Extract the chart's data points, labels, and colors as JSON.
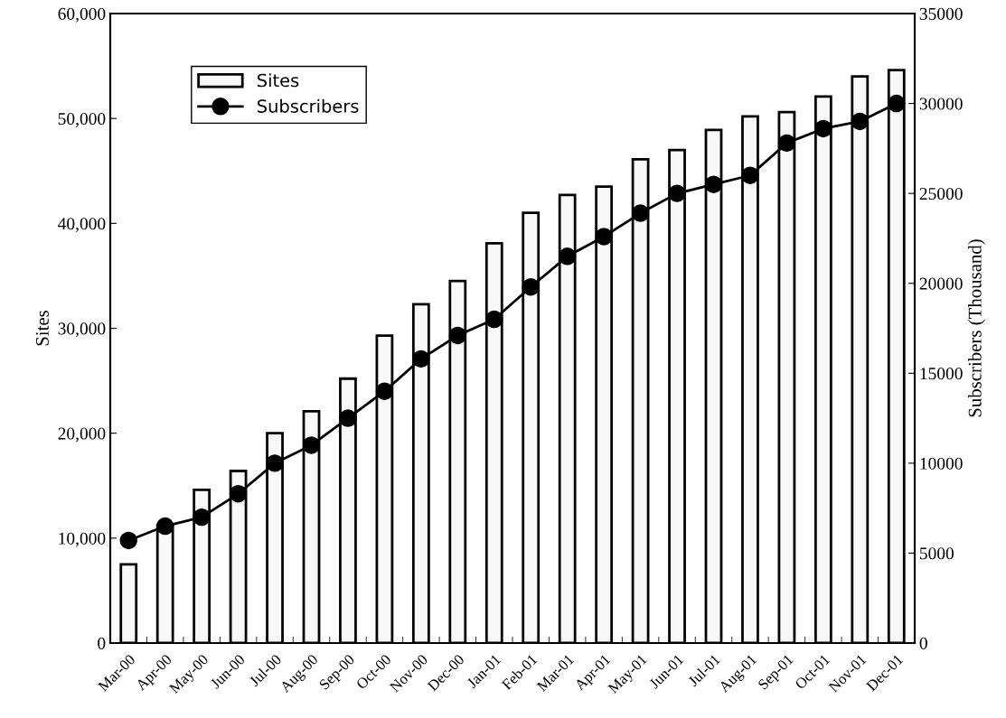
{
  "chart_data": {
    "type": "bar",
    "categories": [
      "Mar-00",
      "Apr-00",
      "May-00",
      "Jun-00",
      "Jul-00",
      "Aug-00",
      "Sep-00",
      "Oct-00",
      "Nov-00",
      "Dec-00",
      "Jan-01",
      "Feb-01",
      "Mar-01",
      "Apr-01",
      "May-01",
      "Jun-01",
      "Jul-01",
      "Aug-01",
      "Sep-01",
      "Oct-01",
      "Nov-01",
      "Dec-01"
    ],
    "series": [
      {
        "name": "Sites",
        "color": "#f8f8f8",
        "values": [
          7500,
          11200,
          14600,
          16400,
          20000,
          22100,
          25200,
          29300,
          32300,
          34500,
          38100,
          41000,
          42700,
          43500,
          46100,
          47000,
          48900,
          50200,
          50600,
          52100,
          54000,
          54600
        ]
      },
      {
        "name": "Subscribers",
        "type": "line",
        "axis": "y2",
        "color": "#000000",
        "marker": "circle",
        "values": [
          5700,
          6500,
          7000,
          8300,
          10000,
          11000,
          12500,
          14000,
          15800,
          17100,
          18000,
          19800,
          21500,
          22600,
          23900,
          25000,
          25500,
          26000,
          27800,
          28600,
          29000,
          30000
        ]
      }
    ],
    "ylabel": "Sites",
    "y2label": "Subscribers (Thousand)",
    "ylim": [
      0,
      60000
    ],
    "yticks": [
      {
        "value": 0,
        "label": "0"
      },
      {
        "value": 10000,
        "label": "10,000"
      },
      {
        "value": 20000,
        "label": "20,000"
      },
      {
        "value": 30000,
        "label": "30,000"
      },
      {
        "value": 40000,
        "label": "40,000"
      },
      {
        "value": 50000,
        "label": "50,000"
      },
      {
        "value": 60000,
        "label": "60,000"
      }
    ],
    "y2lim": [
      0,
      35000
    ],
    "y2ticks": [
      0,
      5000,
      10000,
      15000,
      20000,
      25000,
      30000,
      35000
    ],
    "legend": "top left",
    "grid": false
  }
}
